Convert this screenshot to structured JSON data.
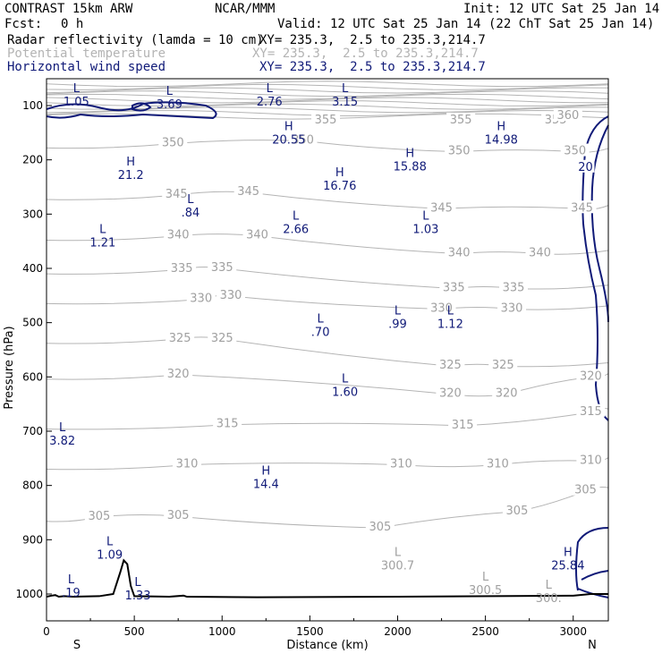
{
  "header": {
    "model": "CONTRAST 15km ARW",
    "center": "NCAR/MMM",
    "init": "Init: 12 UTC Sat 25 Jan 14",
    "fcst_label": "Fcst:",
    "fcst_value": "0 h",
    "valid": "Valid: 12 UTC Sat 25 Jan 14 (22 ChT Sat 25 Jan 14)",
    "fields": [
      {
        "name": "Radar reflectivity (lamda = 10 cm)",
        "xy": "XY= 235.3,  2.5 to 235.3,214.7",
        "color": "#000000"
      },
      {
        "name": "Potential temperature",
        "xy": "XY= 235.3,  2.5 to 235.3,214.7",
        "color": "#b4b4b4"
      },
      {
        "name": "Horizontal wind speed",
        "xy": "XY= 235.3,  2.5 to 235.3,214.7",
        "color": "#101a78"
      }
    ]
  },
  "chart_data": {
    "type": "contour-cross-section",
    "xlabel": "Distance (km)",
    "ylabel": "Pressure (hPa)",
    "xlim": [
      0,
      3200
    ],
    "ylim": [
      1000,
      50
    ],
    "x_ticks": [
      0,
      500,
      1000,
      1500,
      2000,
      2500,
      3000
    ],
    "y_ticks": [
      100,
      200,
      300,
      400,
      500,
      600,
      700,
      800,
      900,
      1000
    ],
    "endpoint_labels": {
      "left": "S",
      "right": "N"
    },
    "colors": {
      "theta": "#b4b4b4",
      "wind": "#101a78",
      "terrain": "#000000"
    },
    "theta_contours": [
      {
        "value": 305,
        "labels": [
          [
            300,
            858
          ],
          [
            750,
            857
          ],
          [
            1900,
            878
          ],
          [
            2680,
            848
          ],
          [
            3070,
            810
          ]
        ]
      },
      {
        "value": 310,
        "labels": [
          [
            800,
            762
          ],
          [
            2020,
            762
          ],
          [
            2570,
            762
          ],
          [
            3100,
            755
          ]
        ]
      },
      {
        "value": 315,
        "labels": [
          [
            1030,
            688
          ],
          [
            2370,
            690
          ],
          [
            3100,
            665
          ]
        ]
      },
      {
        "value": 320,
        "labels": [
          [
            750,
            596
          ],
          [
            2300,
            632
          ],
          [
            2620,
            632
          ],
          [
            3100,
            600
          ]
        ]
      },
      {
        "value": 325,
        "labels": [
          [
            760,
            530
          ],
          [
            1000,
            530
          ],
          [
            2300,
            580
          ],
          [
            2600,
            580
          ]
        ]
      },
      {
        "value": 330,
        "labels": [
          [
            880,
            457
          ],
          [
            1050,
            451
          ],
          [
            2250,
            475
          ],
          [
            2650,
            475
          ]
        ]
      },
      {
        "value": 335,
        "labels": [
          [
            770,
            402
          ],
          [
            1000,
            400
          ],
          [
            2320,
            437
          ],
          [
            2660,
            437
          ]
        ]
      },
      {
        "value": 340,
        "labels": [
          [
            750,
            340
          ],
          [
            1200,
            340
          ],
          [
            2350,
            373
          ],
          [
            2810,
            373
          ]
        ]
      },
      {
        "value": 345,
        "labels": [
          [
            740,
            265
          ],
          [
            1150,
            260
          ],
          [
            2250,
            290
          ],
          [
            3050,
            290
          ]
        ]
      },
      {
        "value": 350,
        "labels": [
          [
            720,
            170
          ],
          [
            1460,
            165
          ],
          [
            2350,
            185
          ],
          [
            3010,
            185
          ]
        ]
      },
      {
        "value": 355,
        "labels": [
          [
            1590,
            128
          ],
          [
            2360,
            128
          ],
          [
            2900,
            128
          ]
        ]
      },
      {
        "value": 360,
        "labels": [
          [
            2970,
            120
          ]
        ]
      }
    ],
    "wind_contours": [
      {
        "value": 20,
        "labels": [
          [
            3070,
            215
          ]
        ]
      }
    ],
    "theta_extrema": [
      {
        "type": "L",
        "value": "300.7",
        "x": 2000,
        "p": 935
      },
      {
        "type": "L",
        "value": "300.5",
        "x": 2500,
        "p": 980
      },
      {
        "type": "L",
        "value": "300.",
        "x": 2860,
        "p": 995
      }
    ],
    "wind_extrema": [
      {
        "type": "L",
        "value": "1.05",
        "x": 170,
        "p": 80
      },
      {
        "type": "L",
        "value": "3.69",
        "x": 700,
        "p": 85
      },
      {
        "type": "L",
        "value": "2.76",
        "x": 1270,
        "p": 80
      },
      {
        "type": "L",
        "value": "3.15",
        "x": 1700,
        "p": 80
      },
      {
        "type": "H",
        "value": "20.55",
        "x": 1380,
        "p": 150
      },
      {
        "type": "H",
        "value": "14.98",
        "x": 2590,
        "p": 150
      },
      {
        "type": "H",
        "value": "21.2",
        "x": 480,
        "p": 215
      },
      {
        "type": "H",
        "value": "15.88",
        "x": 2070,
        "p": 200
      },
      {
        "type": "H",
        "value": "16.76",
        "x": 1670,
        "p": 235
      },
      {
        "type": "L",
        "value": ".84",
        "x": 820,
        "p": 285
      },
      {
        "type": "L",
        "value": "2.66",
        "x": 1420,
        "p": 315
      },
      {
        "type": "L",
        "value": "1.03",
        "x": 2160,
        "p": 315
      },
      {
        "type": "L",
        "value": "1.21",
        "x": 320,
        "p": 340
      },
      {
        "type": "L",
        "value": ".99",
        "x": 2000,
        "p": 490
      },
      {
        "type": "L",
        "value": "1.12",
        "x": 2300,
        "p": 490
      },
      {
        "type": "L",
        "value": ".70",
        "x": 1560,
        "p": 505
      },
      {
        "type": "L",
        "value": "1.60",
        "x": 1700,
        "p": 615
      },
      {
        "type": "L",
        "value": "3.82",
        "x": 90,
        "p": 705
      },
      {
        "type": "H",
        "value": "14.4",
        "x": 1250,
        "p": 785
      },
      {
        "type": "L",
        "value": "1.09",
        "x": 360,
        "p": 915
      },
      {
        "type": "L",
        "value": ".19",
        "x": 140,
        "p": 985
      },
      {
        "type": "L",
        "value": "1.33",
        "x": 520,
        "p": 990
      },
      {
        "type": "H",
        "value": "25.84",
        "x": 2970,
        "p": 935
      }
    ],
    "terrain_pressure": [
      [
        0,
        1005
      ],
      [
        30,
        1003
      ],
      [
        50,
        1002
      ],
      [
        70,
        1005
      ],
      [
        100,
        1004
      ],
      [
        150,
        1005
      ],
      [
        300,
        1004
      ],
      [
        380,
        1000
      ],
      [
        420,
        960
      ],
      [
        440,
        938
      ],
      [
        460,
        945
      ],
      [
        480,
        985
      ],
      [
        500,
        1004
      ],
      [
        700,
        1005
      ],
      [
        780,
        1003
      ],
      [
        800,
        1005
      ],
      [
        1200,
        1006
      ],
      [
        2000,
        1005
      ],
      [
        3000,
        1003
      ],
      [
        3100,
        1000
      ],
      [
        3200,
        1000
      ]
    ]
  }
}
